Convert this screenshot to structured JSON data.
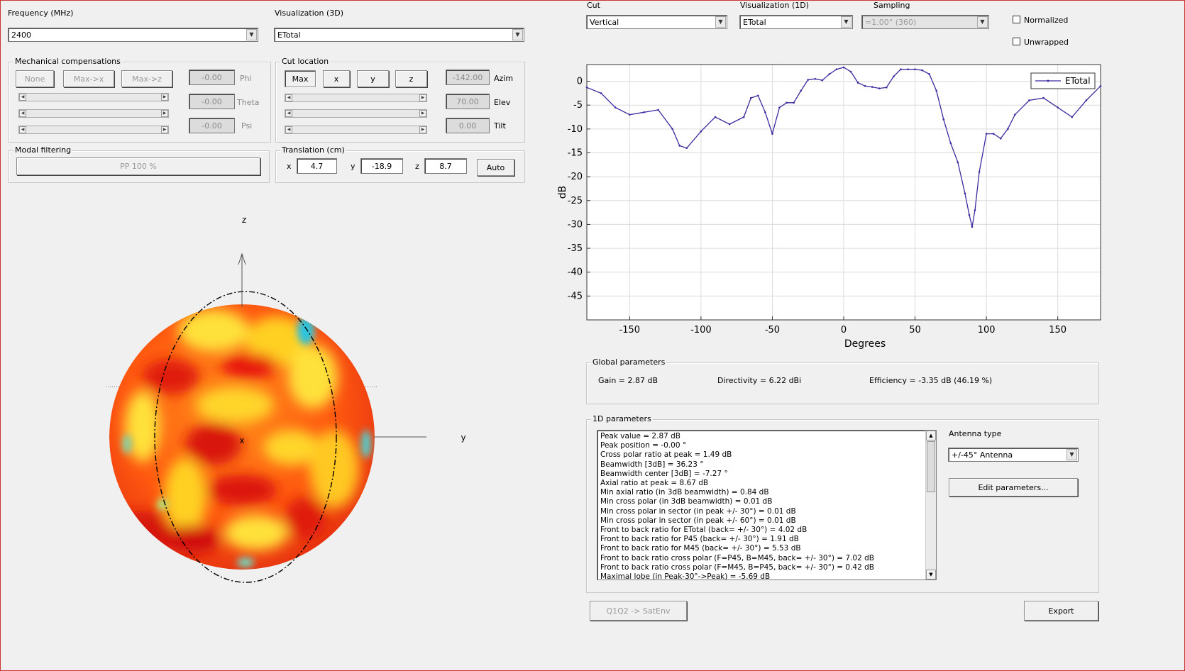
{
  "frequency": {
    "label": "Frequency (MHz)",
    "value": "2400"
  },
  "viz3d": {
    "label": "Visualization (3D)",
    "value": "ETotal"
  },
  "cut": {
    "label": "Cut",
    "value": "Vertical"
  },
  "viz1d": {
    "label": "Visualization (1D)",
    "value": "ETotal"
  },
  "sampling": {
    "label": "Sampling",
    "value": "=1.00° (360)"
  },
  "options": {
    "normalized": "Normalized",
    "unwrapped": "Unwrapped"
  },
  "mech": {
    "title": "Mechanical compensations",
    "none": "None",
    "maxx": "Max->x",
    "maxz": "Max->z",
    "phi_value": "-0.00",
    "phi_label": "Phi",
    "theta_value": "-0.00",
    "theta_label": "Theta",
    "psi_value": "-0.00",
    "psi_label": "Psi"
  },
  "cutloc": {
    "title": "Cut location",
    "max": "Max",
    "x": "x",
    "y": "y",
    "z": "z",
    "azim_value": "-142.00",
    "azim_label": "Azim",
    "elev_value": "70.00",
    "elev_label": "Elev",
    "tilt_value": "0.00",
    "tilt_label": "Tilt"
  },
  "modal": {
    "title": "Modal filtering",
    "button": "PP 100 %"
  },
  "translation": {
    "title": "Translation (cm)",
    "x_label": "x",
    "x_value": "4.7",
    "y_label": "y",
    "y_value": "-18.9",
    "z_label": "z",
    "z_value": "8.7",
    "auto": "Auto"
  },
  "sphere": {
    "axis_z": "z",
    "axis_y": "y",
    "axis_x": "x"
  },
  "global": {
    "title": "Global parameters",
    "gain": "Gain = 2.87 dB",
    "directivity": "Directivity = 6.22 dBi",
    "efficiency": "Efficiency = -3.35 dB  (46.19 %)"
  },
  "params1d": {
    "title": "1D parameters",
    "lines": [
      "Peak value = 2.87 dB",
      "Peak position = -0.00 °",
      "Cross polar ratio at peak = 1.49 dB",
      "Beamwidth [3dB] = 36.23 °",
      "Beamwidth center [3dB] = -7.27 °",
      "Axial ratio at peak = 8.67 dB",
      "Min axial ratio (in 3dB beamwidth) = 0.84 dB",
      "Min cross polar (in 3dB beamwidth) = 0.01 dB",
      "Min cross polar in sector (in peak +/- 30°) = 0.01 dB",
      "Min cross polar in sector (in peak +/- 60°) = 0.01 dB",
      "Front to back ratio for ETotal (back= +/- 30°) = 4.02 dB",
      "Front to back ratio for P45 (back= +/- 30°) = 1.91 dB",
      "Front to back ratio for M45 (back= +/- 30°) = 5.53 dB",
      "Front to back ratio cross polar (F=P45, B=M45, back= +/- 30°) = 7.02 dB",
      "Front to back ratio cross polar (F=M45, B=P45, back= +/- 30°) = 0.42 dB",
      "Maximal lobe (in Peak-30°->Peak) = -5.69 dB"
    ]
  },
  "antenna": {
    "label": "Antenna type",
    "value": "+/-45° Antenna",
    "edit": "Edit parameters..."
  },
  "footer": {
    "q1q2": "Q1Q2 -> SatEnv",
    "export": "Export"
  },
  "chart_data": {
    "type": "line",
    "title": "",
    "xlabel": "Degrees",
    "ylabel": "dB",
    "xlim": [
      -180,
      180
    ],
    "ylim": [
      -50,
      3.5
    ],
    "xticks": [
      -150,
      -100,
      -50,
      0,
      50,
      100,
      150
    ],
    "yticks": [
      0,
      -5,
      -10,
      -15,
      -20,
      -25,
      -30,
      -35,
      -40,
      -45
    ],
    "grid": true,
    "legend_position": "top-right",
    "line_color": "#3a2aa0",
    "series": [
      {
        "name": "ETotal",
        "x": [
          -180,
          -170,
          -160,
          -150,
          -140,
          -130,
          -120,
          -115,
          -110,
          -100,
          -90,
          -80,
          -70,
          -65,
          -60,
          -55,
          -50,
          -45,
          -40,
          -35,
          -30,
          -25,
          -20,
          -15,
          -10,
          -5,
          0,
          5,
          10,
          15,
          20,
          25,
          30,
          35,
          40,
          45,
          50,
          55,
          60,
          65,
          70,
          75,
          80,
          85,
          88,
          90,
          92,
          95,
          100,
          105,
          110,
          115,
          120,
          130,
          140,
          150,
          160,
          170,
          180
        ],
        "y": [
          -1.3,
          -2.5,
          -5.5,
          -7.0,
          -6.5,
          -6.0,
          -10.0,
          -13.5,
          -14.0,
          -10.5,
          -7.5,
          -9.0,
          -7.5,
          -3.5,
          -3.0,
          -6.5,
          -11.0,
          -5.5,
          -4.5,
          -4.5,
          -2.0,
          0.3,
          0.5,
          0.2,
          1.5,
          2.5,
          2.9,
          2.0,
          -0.3,
          -1.0,
          -1.2,
          -1.5,
          -1.3,
          1.0,
          2.5,
          2.5,
          2.5,
          2.3,
          1.5,
          -2.0,
          -8.0,
          -13.0,
          -17.0,
          -23.5,
          -28.0,
          -30.5,
          -27.0,
          -19.0,
          -11.0,
          -11.0,
          -12.0,
          -10.0,
          -7.0,
          -4.0,
          -3.5,
          -5.5,
          -7.5,
          -4.0,
          -1.0
        ]
      }
    ]
  }
}
